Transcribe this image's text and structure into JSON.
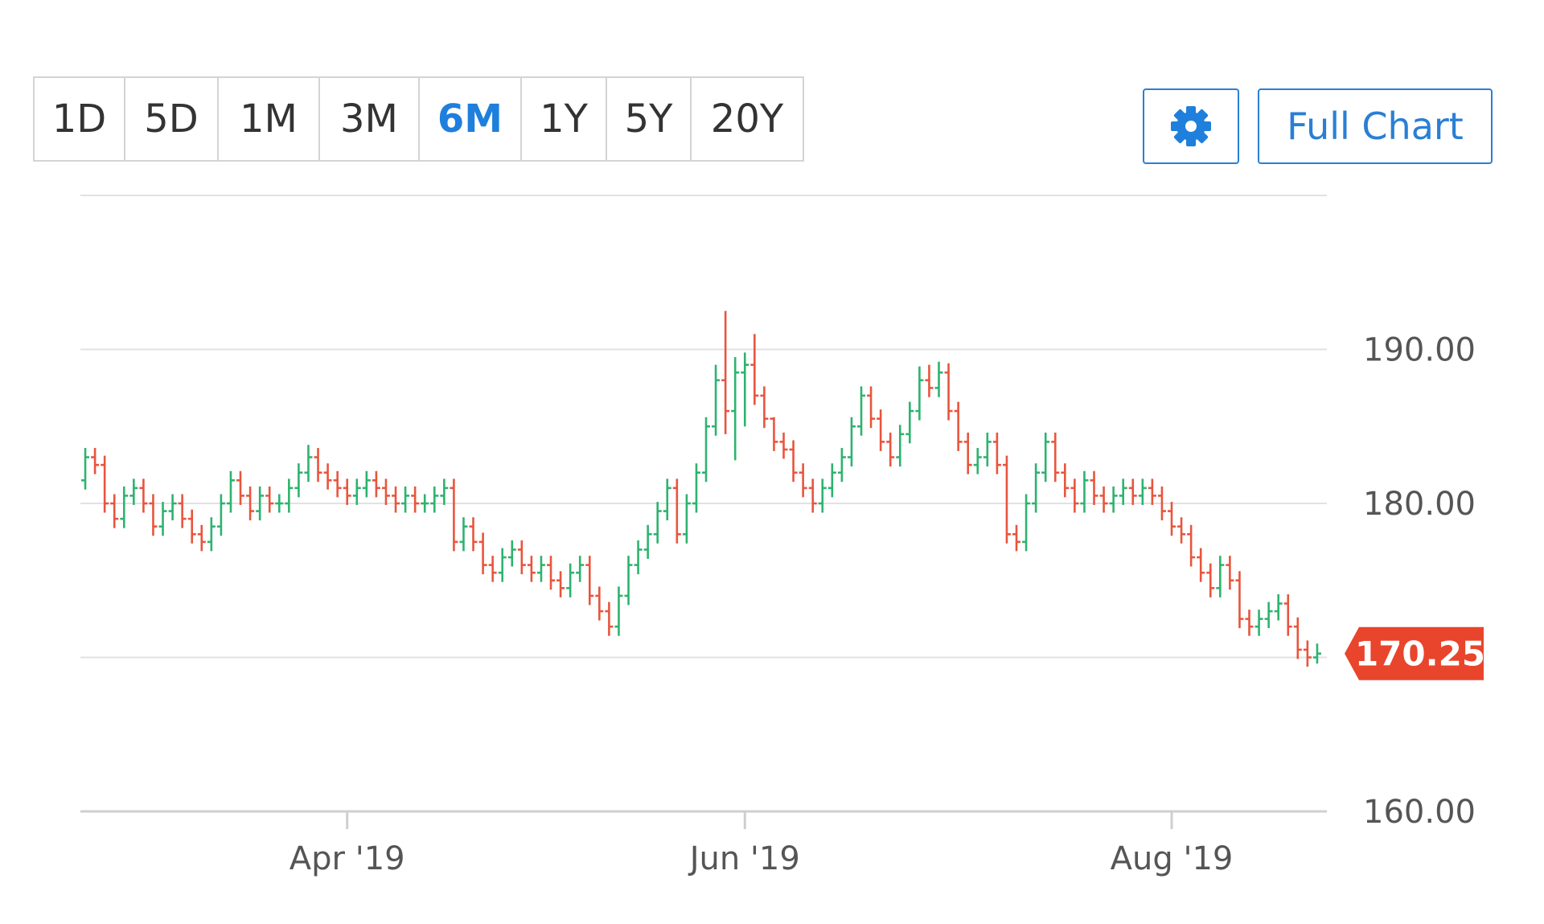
{
  "range_buttons": {
    "options": [
      "1D",
      "5D",
      "1M",
      "3M",
      "6M",
      "1Y",
      "5Y",
      "20Y"
    ],
    "active": 4
  },
  "full_chart_button": "Full Chart",
  "chart_data": {
    "type": "ohlc",
    "up_color": "#2db36f",
    "down_color": "#e8553d",
    "grid": true,
    "xlim": [
      -0.5,
      128
    ],
    "xticks": [
      {
        "value": 27,
        "label": "Apr '19"
      },
      {
        "value": 68,
        "label": "Jun '19"
      },
      {
        "value": 112,
        "label": "Aug '19"
      }
    ],
    "ylim": [
      160,
      200
    ],
    "yticks": [
      {
        "value": 160,
        "label": "160.00"
      },
      {
        "value": 170,
        "label": "170.00"
      },
      {
        "value": 180,
        "label": "180.00"
      },
      {
        "value": 190,
        "label": "190.00"
      }
    ],
    "last_price": {
      "value": 170.25,
      "label": "170.25",
      "color": "#e8452c"
    },
    "open": [
      181.5,
      183,
      182.5,
      180,
      179,
      180.5,
      181,
      180,
      178.5,
      179.5,
      180,
      179,
      178,
      177.5,
      178.5,
      180,
      181.5,
      180.5,
      179.5,
      180.5,
      180,
      180,
      181,
      182,
      183,
      182,
      181.5,
      181,
      180.5,
      181,
      181.5,
      181,
      180.5,
      180,
      180.5,
      180,
      180,
      180.5,
      181,
      177.5,
      178.5,
      177.5,
      176,
      175.5,
      176.5,
      177,
      176,
      175.5,
      176,
      175,
      174.5,
      175.5,
      176,
      174,
      173,
      172,
      174,
      176,
      177,
      178,
      179.5,
      181,
      178,
      180,
      182,
      185,
      188,
      186,
      188.5,
      189,
      187,
      185.5,
      184,
      183.5,
      182,
      181,
      180,
      181,
      182,
      183,
      185,
      187,
      185.5,
      184,
      183,
      184.5,
      186,
      188,
      187.5,
      188.5,
      186,
      184,
      182.5,
      183,
      184,
      182.5,
      178,
      177.5,
      180,
      182,
      184,
      182,
      181,
      180,
      181.5,
      180.5,
      180,
      180.5,
      181,
      180.5,
      181,
      180.5,
      179.5,
      178.5,
      178,
      176.5,
      175.5,
      174.5,
      176,
      175,
      172.5,
      172,
      172.5,
      173,
      173.5,
      172,
      170.5,
      170
    ],
    "high": [
      183.6,
      183.6,
      183.1,
      180.6,
      181.1,
      181.6,
      181.6,
      180.6,
      180.1,
      180.6,
      180.6,
      179.6,
      178.6,
      179.1,
      180.6,
      182.1,
      182.1,
      181.1,
      181.1,
      181.1,
      180.6,
      181.6,
      182.6,
      183.8,
      183.6,
      182.6,
      182.1,
      181.6,
      181.6,
      182.1,
      182.1,
      181.6,
      181.1,
      181.1,
      181.1,
      180.6,
      181.1,
      181.6,
      181.6,
      179.1,
      179.1,
      178.1,
      176.6,
      177.1,
      177.6,
      177.6,
      176.6,
      176.6,
      176.6,
      175.6,
      176.1,
      176.6,
      176.6,
      174.6,
      173.6,
      174.6,
      176.6,
      177.6,
      178.6,
      180.1,
      181.6,
      181.6,
      180.6,
      182.6,
      185.6,
      189,
      192.5,
      189.5,
      189.8,
      191,
      187.6,
      185.6,
      184.6,
      184.1,
      182.6,
      181.6,
      181.6,
      182.6,
      183.6,
      185.6,
      187.6,
      187.6,
      186.1,
      184.6,
      185.1,
      186.6,
      188.9,
      189,
      189.2,
      189.1,
      186.6,
      184.6,
      183.6,
      184.6,
      184.6,
      183.1,
      178.6,
      180.6,
      182.6,
      184.6,
      184.6,
      182.6,
      181.6,
      182.1,
      182.1,
      181.1,
      181.1,
      181.6,
      181.6,
      181.6,
      181.6,
      181.1,
      180.1,
      179.1,
      178.6,
      177.1,
      176.1,
      176.6,
      176.6,
      175.6,
      173.1,
      173.1,
      173.6,
      174.1,
      174.1,
      172.6,
      171.1,
      170.9
    ],
    "low": [
      180.9,
      181.9,
      179.4,
      178.4,
      178.4,
      179.9,
      179.4,
      177.9,
      177.9,
      178.9,
      178.4,
      177.4,
      176.9,
      176.9,
      177.9,
      179.4,
      179.9,
      178.9,
      178.9,
      179.4,
      179.4,
      179.4,
      180.4,
      181.4,
      181.4,
      180.9,
      180.4,
      179.9,
      179.9,
      180.4,
      180.4,
      179.9,
      179.4,
      179.4,
      179.4,
      179.4,
      179.4,
      179.9,
      176.9,
      176.9,
      176.9,
      175.4,
      174.9,
      174.9,
      175.9,
      175.4,
      174.9,
      174.9,
      174.4,
      173.9,
      173.9,
      174.9,
      173.4,
      172.4,
      171.4,
      171.4,
      173.4,
      175.4,
      176.4,
      177.4,
      178.9,
      177.4,
      177.4,
      179.4,
      181.4,
      184.4,
      184.5,
      182.8,
      185,
      186.4,
      184.9,
      183.4,
      182.9,
      181.4,
      180.4,
      179.4,
      179.4,
      180.4,
      181.4,
      182.4,
      184.4,
      184.9,
      183.4,
      182.4,
      182.4,
      183.9,
      185.4,
      186.9,
      186.9,
      185.4,
      183.4,
      181.9,
      181.9,
      182.4,
      181.9,
      177.4,
      176.9,
      176.9,
      179.4,
      181.4,
      181.4,
      180.4,
      179.4,
      179.4,
      179.9,
      179.4,
      179.4,
      179.9,
      179.9,
      179.9,
      179.9,
      178.9,
      177.9,
      177.4,
      175.9,
      174.9,
      173.9,
      173.9,
      174.4,
      171.9,
      171.4,
      171.4,
      171.9,
      172.4,
      171.4,
      169.9,
      169.4,
      169.6
    ],
    "close": [
      183,
      182.5,
      180,
      179,
      180.5,
      181,
      180,
      178.5,
      179.5,
      180,
      179,
      178,
      177.5,
      178.5,
      180,
      181.5,
      180.5,
      179.5,
      180.5,
      180,
      180,
      181,
      182,
      183,
      182,
      181.5,
      181,
      180.5,
      181,
      181.5,
      181,
      180.5,
      180,
      180.5,
      180,
      180,
      180.5,
      181,
      177.5,
      178.5,
      177.5,
      176,
      175.5,
      176.5,
      177,
      176,
      175.5,
      176,
      175,
      174.5,
      175.5,
      176,
      174,
      173,
      172,
      174,
      176,
      177,
      178,
      179.5,
      181,
      178,
      180,
      182,
      185,
      188,
      186,
      188.5,
      189,
      187,
      185.5,
      184,
      183.5,
      182,
      181,
      180,
      181,
      182,
      183,
      185,
      187,
      185.5,
      184,
      183,
      184.5,
      186,
      188,
      187.5,
      188.5,
      186,
      184,
      182.5,
      183,
      184,
      182.5,
      178,
      177.5,
      180,
      182,
      184,
      182,
      181,
      180,
      181.5,
      180.5,
      180,
      180.5,
      181,
      180.5,
      181,
      180.5,
      179.5,
      178.5,
      178,
      176.5,
      175.5,
      174.5,
      176,
      175,
      172.5,
      172,
      172.5,
      173,
      173.5,
      172,
      170.5,
      170,
      170.25
    ]
  }
}
